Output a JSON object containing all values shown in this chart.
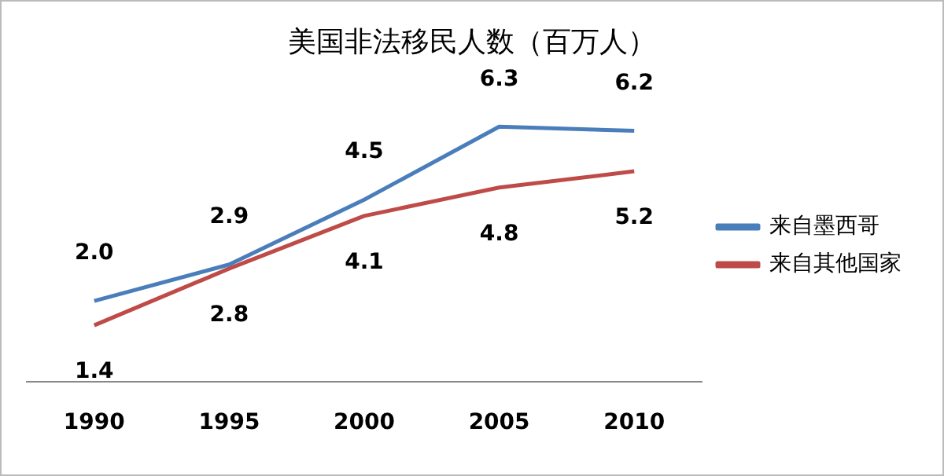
{
  "chart_data": {
    "type": "line",
    "title": "美国非法移民人数（百万人）",
    "categories": [
      "1990",
      "1995",
      "2000",
      "2005",
      "2010"
    ],
    "series": [
      {
        "name": "来自墨西哥",
        "color": "#4a7ebb",
        "values": [
          2.0,
          2.9,
          4.5,
          6.3,
          6.2
        ],
        "value_labels": [
          "2.0",
          "2.9",
          "4.5",
          "6.3",
          "6.2"
        ]
      },
      {
        "name": "来自其他国家",
        "color": "#be4b48",
        "values": [
          1.4,
          2.8,
          4.1,
          4.8,
          5.2
        ],
        "value_labels": [
          "1.4",
          "2.8",
          "4.1",
          "4.8",
          "5.2"
        ]
      }
    ],
    "legend": "right",
    "grid": false,
    "tick_labels": "x",
    "marker": "none"
  }
}
